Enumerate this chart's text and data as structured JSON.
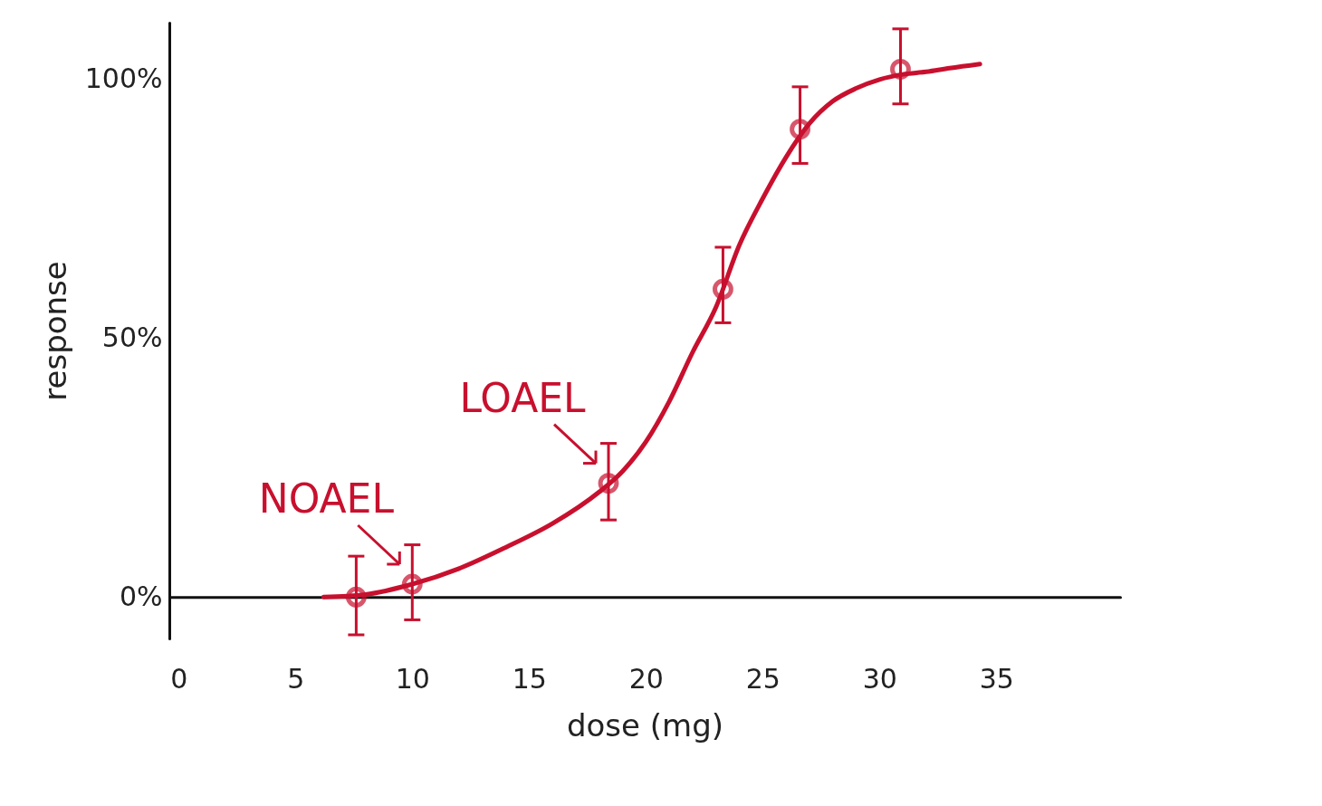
{
  "chart_data": {
    "type": "scatter",
    "xlabel": "dose (mg)",
    "ylabel": "response",
    "xlim": [
      -0.4,
      40.3
    ],
    "ylim": [
      -8,
      111
    ],
    "xticks": [
      0,
      5,
      10,
      15,
      20,
      25,
      30,
      35
    ],
    "yticks": [
      {
        "value": 0,
        "label": "0%"
      },
      {
        "value": 50,
        "label": "50%"
      },
      {
        "value": 100,
        "label": "100%"
      }
    ],
    "grid": false,
    "series": [
      {
        "marker": "circle",
        "color": "#c8102e",
        "x": [
          7.6,
          10,
          18.4,
          23.3,
          26.6,
          30.9
        ],
        "values": [
          0,
          2.5,
          22,
          59.5,
          90.4,
          102
        ],
        "errors": [
          [
            -7.3,
            7.9
          ],
          [
            -4.4,
            10.1
          ],
          [
            14.9,
            29.7
          ],
          [
            53,
            67.6
          ],
          [
            83.8,
            98.6
          ],
          [
            95.3,
            109.8
          ]
        ]
      },
      {
        "type": "line",
        "color": "#c8102e",
        "x": [
          6.2,
          8,
          10,
          12,
          14,
          16,
          18,
          19,
          20,
          21,
          22,
          23,
          24,
          25,
          26,
          27,
          28,
          29,
          30,
          31,
          32,
          33,
          34.3
        ],
        "values": [
          0,
          0.5,
          2.5,
          5.5,
          9.6,
          14.2,
          20.3,
          24.3,
          30,
          37.8,
          47.3,
          56,
          68,
          77,
          85,
          91.5,
          95.8,
          98.3,
          100,
          101,
          101.5,
          102.2,
          103
        ]
      }
    ],
    "annotations": [
      {
        "text": "NOAEL",
        "x": 10,
        "y": 2.5
      },
      {
        "text": "LOAEL",
        "x": 18.4,
        "y": 22
      }
    ]
  }
}
